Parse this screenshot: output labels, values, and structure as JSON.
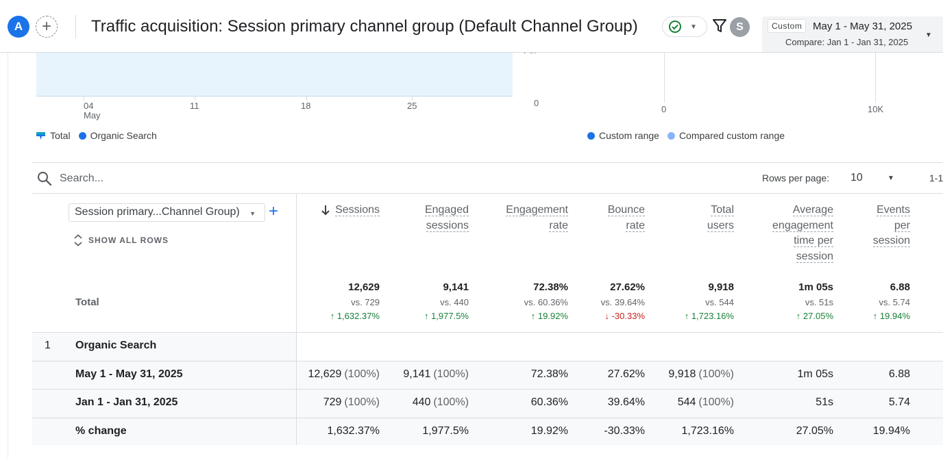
{
  "header": {
    "avatar_letter": "A",
    "title": "Traffic acquisition: Session primary channel group (Default Channel Group)",
    "user_letter": "S",
    "date_range": {
      "chip": "Custom",
      "range": "May 1 - May 31, 2025",
      "compare": "Compare: Jan 1 - Jan 31, 2025"
    }
  },
  "line_chart": {
    "x_ticks": [
      "04",
      "11",
      "18",
      "25"
    ],
    "x_month": "May",
    "y_zero": "0",
    "legend": [
      {
        "label": "Total",
        "color": "#1a73e8"
      },
      {
        "label": "Organic Search",
        "color": "#1a73e8"
      }
    ]
  },
  "bar_chart": {
    "x_ticks": [
      "0",
      "10K"
    ],
    "legend": [
      {
        "label": "Custom range",
        "color": "#1a73e8"
      },
      {
        "label": "Compared custom range",
        "color": "#8ab4f8"
      }
    ]
  },
  "toolbar": {
    "search_placeholder": "Search...",
    "rows_per_page_label": "Rows per page:",
    "rows_per_page_value": "10",
    "pager": "1-1"
  },
  "table": {
    "dimension_select": "Session primary...Channel Group)",
    "show_all_rows": "SHOW ALL ROWS",
    "columns": [
      {
        "lines": [
          "Sessions"
        ]
      },
      {
        "lines": [
          "Engaged",
          "sessions"
        ]
      },
      {
        "lines": [
          "Engagement",
          "rate"
        ]
      },
      {
        "lines": [
          "Bounce",
          "rate"
        ]
      },
      {
        "lines": [
          "Total",
          "users"
        ]
      },
      {
        "lines": [
          "Average",
          "engagement",
          "time per",
          "session"
        ]
      },
      {
        "lines": [
          "Events",
          "per",
          "session"
        ]
      }
    ],
    "total_label": "Total",
    "totals": [
      {
        "value": "12,629",
        "vs": "vs. 729",
        "change": "1,632.37%",
        "dir": "up"
      },
      {
        "value": "9,141",
        "vs": "vs. 440",
        "change": "1,977.5%",
        "dir": "up"
      },
      {
        "value": "72.38%",
        "vs": "vs. 60.36%",
        "change": "19.92%",
        "dir": "up"
      },
      {
        "value": "27.62%",
        "vs": "vs. 39.64%",
        "change": "-30.33%",
        "dir": "down"
      },
      {
        "value": "9,918",
        "vs": "vs. 544",
        "change": "1,723.16%",
        "dir": "up"
      },
      {
        "value": "1m 05s",
        "vs": "vs. 51s",
        "change": "27.05%",
        "dir": "up"
      },
      {
        "value": "6.88",
        "vs": "vs. 5.74",
        "change": "19.94%",
        "dir": "up"
      }
    ],
    "group": {
      "index": "1",
      "name": "Organic Search"
    },
    "rows": [
      {
        "label": "May 1 - May 31, 2025",
        "cells": [
          {
            "v": "12,629",
            "p": "(100%)"
          },
          {
            "v": "9,141",
            "p": "(100%)"
          },
          {
            "v": "72.38%",
            "p": ""
          },
          {
            "v": "27.62%",
            "p": ""
          },
          {
            "v": "9,918",
            "p": "(100%)"
          },
          {
            "v": "1m 05s",
            "p": ""
          },
          {
            "v": "6.88",
            "p": ""
          }
        ]
      },
      {
        "label": "Jan 1 - Jan 31, 2025",
        "cells": [
          {
            "v": "729",
            "p": "(100%)"
          },
          {
            "v": "440",
            "p": "(100%)"
          },
          {
            "v": "60.36%",
            "p": ""
          },
          {
            "v": "39.64%",
            "p": ""
          },
          {
            "v": "544",
            "p": "(100%)"
          },
          {
            "v": "51s",
            "p": ""
          },
          {
            "v": "5.74",
            "p": ""
          }
        ]
      },
      {
        "label": "% change",
        "cells": [
          {
            "v": "1,632.37%",
            "p": ""
          },
          {
            "v": "1,977.5%",
            "p": ""
          },
          {
            "v": "19.92%",
            "p": ""
          },
          {
            "v": "-30.33%",
            "p": ""
          },
          {
            "v": "1,723.16%",
            "p": ""
          },
          {
            "v": "27.05%",
            "p": ""
          },
          {
            "v": "19.94%",
            "p": ""
          }
        ]
      }
    ]
  }
}
